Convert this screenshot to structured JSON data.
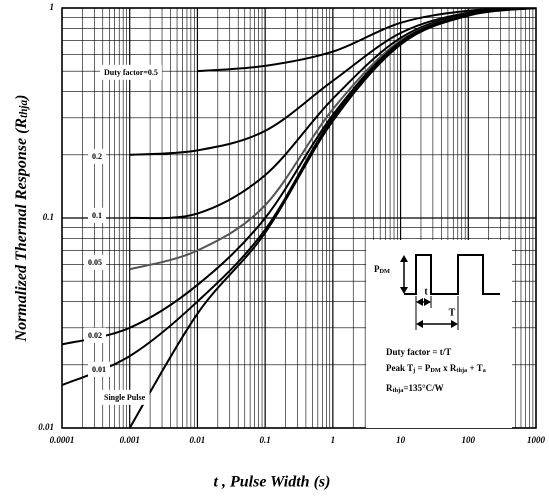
{
  "chart_data": {
    "type": "line",
    "y_label": [
      "Normalized Thermal Response (R",
      "thja",
      ")"
    ],
    "x_label": "t , Pulse Width (s)",
    "x": [
      0.0001,
      0.001,
      0.01,
      0.1,
      1,
      10,
      100,
      1000
    ],
    "series": [
      {
        "name": "Duty factor=0.5",
        "color": "#000000",
        "values": [
          null,
          null,
          0.5,
          0.53,
          0.62,
          0.85,
          0.97,
          1
        ]
      },
      {
        "name": "0.2",
        "color": "#000000",
        "values": [
          null,
          0.2,
          0.21,
          0.26,
          0.45,
          0.76,
          0.95,
          1
        ]
      },
      {
        "name": "0.1",
        "color": "#000000",
        "values": [
          null,
          0.1,
          0.105,
          0.16,
          0.37,
          0.72,
          0.94,
          1
        ]
      },
      {
        "name": "0.05",
        "color": "#555555",
        "values": [
          null,
          0.057,
          0.07,
          0.115,
          0.33,
          0.7,
          0.93,
          1
        ]
      },
      {
        "name": "0.02",
        "color": "#000000",
        "values": [
          0.025,
          0.03,
          0.048,
          0.1,
          0.31,
          0.69,
          0.93,
          1
        ]
      },
      {
        "name": "0.01",
        "color": "#000000",
        "values": [
          0.016,
          0.022,
          0.04,
          0.088,
          0.3,
          0.68,
          0.93,
          1
        ]
      },
      {
        "name": "Single Pulse",
        "color": "#000000",
        "values": [
          null,
          0.01,
          0.035,
          0.085,
          0.29,
          0.67,
          0.92,
          1
        ]
      }
    ],
    "xlim": [
      0.0001,
      1000
    ],
    "ylim": [
      0.01,
      1
    ],
    "xticks": [
      0.0001,
      0.001,
      0.01,
      0.1,
      1,
      10,
      100,
      1000
    ],
    "yticks": [
      0.01,
      0.1,
      1
    ],
    "xlog": true,
    "ylog": true,
    "grid": true,
    "minor_grid": true,
    "inset": {
      "pdm": [
        "P",
        "DM"
      ],
      "t": "t",
      "T": "T",
      "duty": "Duty factor = t/T",
      "peak": [
        "Peak T",
        "j",
        " = P",
        "DM",
        " x R",
        "thja",
        " + T",
        "a"
      ],
      "rth": [
        "R",
        "thja",
        "=135°C/W"
      ]
    }
  }
}
